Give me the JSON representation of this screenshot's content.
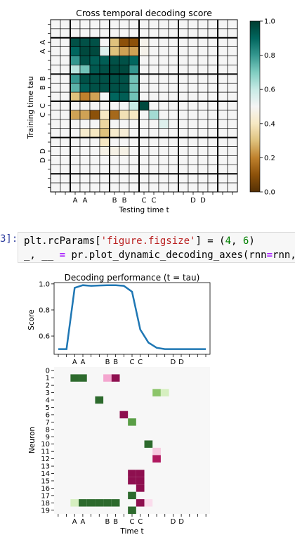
{
  "heatmap": {
    "title": "Cross temporal decoding score",
    "xlabel": "Testing time t",
    "ylabel": "Training time tau",
    "x_ticks": [
      "A",
      "A",
      "B",
      "B",
      "C",
      "C",
      "D",
      "D"
    ],
    "y_ticks": [
      "A",
      "A",
      "B",
      "B",
      "C",
      "C",
      "D",
      "D"
    ],
    "colorbar_ticks": [
      "1.0",
      "0.8",
      "0.6",
      "0.4",
      "0.2",
      "0.0"
    ]
  },
  "code_cell": {
    "prompt": "3]:",
    "line1_a": "plt.rcParams[",
    "line1_str": "'figure.figsize'",
    "line1_b": "] = (",
    "line1_n1": "4",
    "line1_c": ", ",
    "line1_n2": "6",
    "line1_d": ")",
    "line2_a": "_, __ ",
    "line2_eq": "=",
    "line2_b": " pr.plot_dynamic_decoding_axes(rnn",
    "line2_eq2": "=",
    "line2_c": "rnn,"
  },
  "line_chart": {
    "title": "Decoding performance (t = tau)",
    "ylabel": "Score",
    "y_ticks": [
      "1.0",
      "0.8",
      "0.6"
    ],
    "x_ticks": [
      "A",
      "A",
      "B",
      "B",
      "C",
      "C",
      "D",
      "D"
    ]
  },
  "neuron_chart": {
    "ylabel": "Neuron",
    "xlabel": "Time t",
    "x_ticks": [
      "A",
      "A",
      "B",
      "B",
      "C",
      "C",
      "D",
      "D"
    ],
    "y_ticks": [
      "0",
      "1",
      "2",
      "3",
      "4",
      "5",
      "6",
      "7",
      "8",
      "9",
      "10",
      "11",
      "12",
      "13",
      "14",
      "15",
      "16",
      "17",
      "18",
      "19"
    ]
  },
  "chart_data": [
    {
      "type": "heatmap",
      "title": "Cross temporal decoding score",
      "xlabel": "Testing time t",
      "ylabel": "Training time tau",
      "colorscale": "BrBG",
      "vmin": 0.0,
      "vmax": 1.0,
      "n_rows": 19,
      "n_cols": 19,
      "tick_labels": [
        "",
        "",
        "A",
        "A",
        "",
        "",
        "B",
        "B",
        "",
        "C",
        "C",
        "",
        "",
        "",
        "D",
        "D",
        "",
        "",
        ""
      ],
      "matrix": [
        [
          0.5,
          0.5,
          0.5,
          0.5,
          0.5,
          0.5,
          0.5,
          0.5,
          0.5,
          0.5,
          0.5,
          0.5,
          0.5,
          0.5,
          0.5,
          0.5,
          0.5,
          0.5,
          0.5
        ],
        [
          0.5,
          0.5,
          0.5,
          0.5,
          0.5,
          0.5,
          0.5,
          0.5,
          0.5,
          0.5,
          0.5,
          0.5,
          0.5,
          0.5,
          0.5,
          0.5,
          0.5,
          0.5,
          0.5
        ],
        [
          0.5,
          0.5,
          0.95,
          0.95,
          0.95,
          0.5,
          0.3,
          0.1,
          0.1,
          0.48,
          0.5,
          0.5,
          0.5,
          0.5,
          0.5,
          0.5,
          0.5,
          0.5,
          0.5
        ],
        [
          0.5,
          0.5,
          0.9,
          0.97,
          0.97,
          0.55,
          0.3,
          0.25,
          0.25,
          0.48,
          0.5,
          0.5,
          0.5,
          0.5,
          0.5,
          0.5,
          0.5,
          0.5,
          0.5
        ],
        [
          0.5,
          0.5,
          0.8,
          0.95,
          0.92,
          0.92,
          0.95,
          0.95,
          0.9,
          0.5,
          0.5,
          0.5,
          0.5,
          0.5,
          0.5,
          0.5,
          0.5,
          0.5,
          0.5
        ],
        [
          0.5,
          0.5,
          0.62,
          0.72,
          0.93,
          0.95,
          0.97,
          0.97,
          0.8,
          0.5,
          0.5,
          0.5,
          0.5,
          0.5,
          0.5,
          0.5,
          0.5,
          0.5,
          0.5
        ],
        [
          0.5,
          0.5,
          0.8,
          0.95,
          0.95,
          0.95,
          0.95,
          0.95,
          0.72,
          0.5,
          0.5,
          0.5,
          0.5,
          0.5,
          0.5,
          0.5,
          0.5,
          0.5,
          0.5
        ],
        [
          0.5,
          0.5,
          0.75,
          0.92,
          0.95,
          0.95,
          0.95,
          0.95,
          0.72,
          0.5,
          0.5,
          0.5,
          0.5,
          0.5,
          0.5,
          0.5,
          0.5,
          0.5,
          0.5
        ],
        [
          0.5,
          0.5,
          0.3,
          0.2,
          0.25,
          0.5,
          0.9,
          0.92,
          0.72,
          0.5,
          0.5,
          0.5,
          0.5,
          0.5,
          0.5,
          0.5,
          0.5,
          0.5,
          0.5
        ],
        [
          0.5,
          0.5,
          0.5,
          0.5,
          0.5,
          0.5,
          0.5,
          0.5,
          0.6,
          0.97,
          0.5,
          0.5,
          0.5,
          0.5,
          0.5,
          0.5,
          0.5,
          0.5,
          0.5
        ],
        [
          0.5,
          0.5,
          0.25,
          0.25,
          0.1,
          0.4,
          0.15,
          0.38,
          0.4,
          0.5,
          0.65,
          0.5,
          0.5,
          0.5,
          0.5,
          0.5,
          0.5,
          0.5,
          0.5
        ],
        [
          0.5,
          0.5,
          0.5,
          0.5,
          0.5,
          0.35,
          0.5,
          0.5,
          0.5,
          0.5,
          0.5,
          0.55,
          0.5,
          0.5,
          0.5,
          0.5,
          0.5,
          0.5,
          0.5
        ],
        [
          0.5,
          0.5,
          0.5,
          0.42,
          0.4,
          0.3,
          0.42,
          0.44,
          0.5,
          0.5,
          0.5,
          0.5,
          0.5,
          0.5,
          0.5,
          0.5,
          0.5,
          0.5,
          0.5
        ],
        [
          0.5,
          0.5,
          0.5,
          0.5,
          0.5,
          0.4,
          0.5,
          0.5,
          0.5,
          0.5,
          0.5,
          0.5,
          0.5,
          0.5,
          0.5,
          0.5,
          0.5,
          0.5,
          0.5
        ],
        [
          0.5,
          0.5,
          0.5,
          0.5,
          0.5,
          0.47,
          0.47,
          0.47,
          0.5,
          0.5,
          0.5,
          0.5,
          0.5,
          0.5,
          0.5,
          0.5,
          0.5,
          0.5,
          0.5
        ],
        [
          0.5,
          0.5,
          0.5,
          0.5,
          0.5,
          0.5,
          0.5,
          0.5,
          0.5,
          0.5,
          0.5,
          0.5,
          0.5,
          0.5,
          0.5,
          0.5,
          0.5,
          0.5,
          0.5
        ],
        [
          0.5,
          0.5,
          0.5,
          0.5,
          0.5,
          0.5,
          0.5,
          0.5,
          0.5,
          0.5,
          0.5,
          0.5,
          0.5,
          0.5,
          0.5,
          0.5,
          0.5,
          0.5,
          0.5
        ],
        [
          0.5,
          0.5,
          0.5,
          0.5,
          0.5,
          0.5,
          0.5,
          0.5,
          0.5,
          0.5,
          0.5,
          0.5,
          0.5,
          0.5,
          0.5,
          0.5,
          0.5,
          0.5,
          0.5
        ],
        [
          0.5,
          0.5,
          0.5,
          0.5,
          0.5,
          0.5,
          0.5,
          0.5,
          0.5,
          0.5,
          0.5,
          0.5,
          0.5,
          0.5,
          0.5,
          0.5,
          0.5,
          0.5,
          0.5
        ]
      ],
      "colorbar_range": [
        0.0,
        1.0
      ],
      "colorbar_ticks": [
        0.0,
        0.2,
        0.4,
        0.6,
        0.8,
        1.0
      ]
    },
    {
      "type": "line",
      "title": "Decoding performance (t = tau)",
      "ylabel": "Score",
      "x": [
        0,
        1,
        2,
        3,
        4,
        5,
        6,
        7,
        8,
        9,
        10,
        11,
        12,
        13,
        14,
        15,
        16,
        17,
        18
      ],
      "tick_labels": [
        "",
        "",
        "A",
        "A",
        "",
        "",
        "B",
        "B",
        "",
        "C",
        "C",
        "",
        "",
        "",
        "D",
        "D",
        "",
        "",
        ""
      ],
      "values": [
        0.5,
        0.5,
        0.97,
        0.99,
        0.985,
        0.988,
        0.99,
        0.99,
        0.985,
        0.94,
        0.65,
        0.55,
        0.51,
        0.5,
        0.5,
        0.5,
        0.5,
        0.5,
        0.5
      ],
      "ylim": [
        0.46,
        1.01
      ],
      "line_color": "#1f77b4"
    },
    {
      "type": "heatmap",
      "xlabel": "Time t",
      "ylabel": "Neuron",
      "n_rows": 20,
      "n_cols": 19,
      "tick_labels": [
        "",
        "",
        "A",
        "A",
        "",
        "",
        "B",
        "B",
        "",
        "C",
        "C",
        "",
        "",
        "",
        "D",
        "D",
        "",
        "",
        ""
      ],
      "neuron_labels": [
        "0",
        "1",
        "2",
        "3",
        "4",
        "5",
        "6",
        "7",
        "8",
        "9",
        "10",
        "11",
        "12",
        "13",
        "14",
        "15",
        "16",
        "17",
        "18",
        "19"
      ],
      "cells": [
        {
          "neuron": 1,
          "t": 2,
          "color": "#2d6a2d"
        },
        {
          "neuron": 1,
          "t": 3,
          "color": "#2d6a2d"
        },
        {
          "neuron": 1,
          "t": 6,
          "color": "#f4a6cf"
        },
        {
          "neuron": 1,
          "t": 7,
          "color": "#8e0f4f"
        },
        {
          "neuron": 3,
          "t": 12,
          "color": "#8cc56a"
        },
        {
          "neuron": 3,
          "t": 13,
          "color": "#d6efc0"
        },
        {
          "neuron": 4,
          "t": 5,
          "color": "#2d6a2d"
        },
        {
          "neuron": 6,
          "t": 8,
          "color": "#8e0f4f"
        },
        {
          "neuron": 7,
          "t": 9,
          "color": "#5a9e46"
        },
        {
          "neuron": 10,
          "t": 11,
          "color": "#2d6a2d"
        },
        {
          "neuron": 11,
          "t": 12,
          "color": "#f7c9e0"
        },
        {
          "neuron": 12,
          "t": 12,
          "color": "#b0185f"
        },
        {
          "neuron": 14,
          "t": 9,
          "color": "#8e0f4f"
        },
        {
          "neuron": 14,
          "t": 10,
          "color": "#8e0f4f"
        },
        {
          "neuron": 15,
          "t": 9,
          "color": "#8e0f4f"
        },
        {
          "neuron": 15,
          "t": 10,
          "color": "#8e0f4f"
        },
        {
          "neuron": 16,
          "t": 10,
          "color": "#8e0f4f"
        },
        {
          "neuron": 17,
          "t": 9,
          "color": "#2d6a2d"
        },
        {
          "neuron": 18,
          "t": 2,
          "color": "#d6efc0"
        },
        {
          "neuron": 18,
          "t": 3,
          "color": "#2d6a2d"
        },
        {
          "neuron": 18,
          "t": 4,
          "color": "#2d6a2d"
        },
        {
          "neuron": 18,
          "t": 5,
          "color": "#2d6a2d"
        },
        {
          "neuron": 18,
          "t": 6,
          "color": "#2d6a2d"
        },
        {
          "neuron": 18,
          "t": 7,
          "color": "#2d6a2d"
        },
        {
          "neuron": 18,
          "t": 10,
          "color": "#8e0f4f"
        },
        {
          "neuron": 18,
          "t": 11,
          "color": "#fadcec"
        },
        {
          "neuron": 19,
          "t": 9,
          "color": "#2d6a2d"
        }
      ],
      "background": "#f7f7f7"
    }
  ]
}
